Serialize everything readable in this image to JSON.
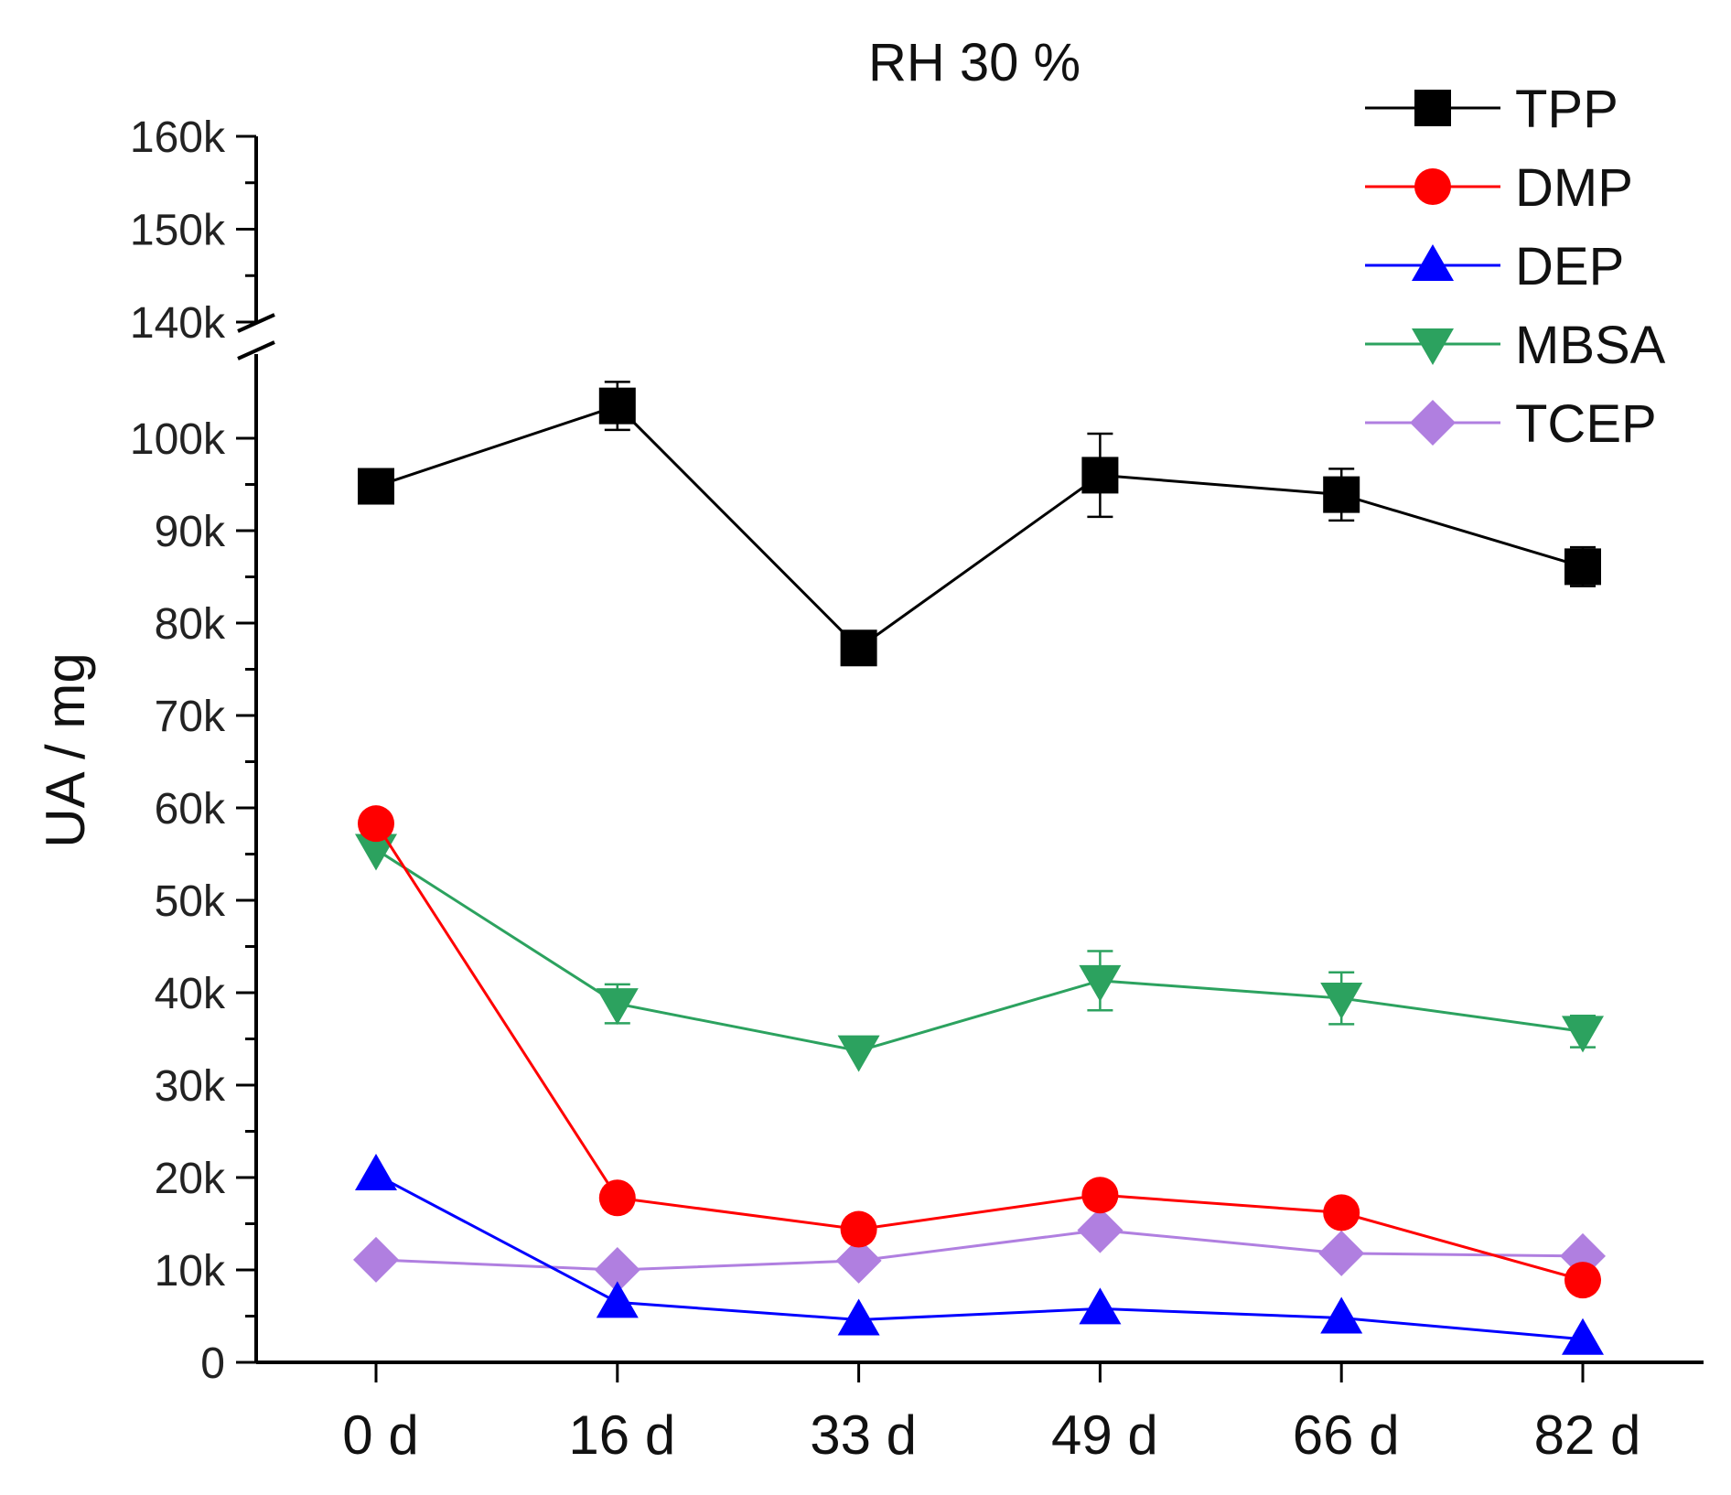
{
  "chart_data": {
    "type": "line",
    "title": "RH 30 %",
    "xlabel": "",
    "ylabel": "UA / mg",
    "categories": [
      "0 d",
      "16 d",
      "33 d",
      "49 d",
      "66 d",
      "82 d"
    ],
    "ylim_lower": [
      0,
      105000
    ],
    "ylim_upper": [
      140000,
      160000
    ],
    "axis_break": true,
    "lower_ticks": [
      {
        "value": 0,
        "label": "0"
      },
      {
        "value": 10000,
        "label": "10k"
      },
      {
        "value": 20000,
        "label": "20k"
      },
      {
        "value": 30000,
        "label": "30k"
      },
      {
        "value": 40000,
        "label": "40k"
      },
      {
        "value": 50000,
        "label": "50k"
      },
      {
        "value": 60000,
        "label": "60k"
      },
      {
        "value": 70000,
        "label": "70k"
      },
      {
        "value": 80000,
        "label": "80k"
      },
      {
        "value": 90000,
        "label": "90k"
      },
      {
        "value": 100000,
        "label": "100k"
      }
    ],
    "upper_ticks": [
      {
        "value": 140000,
        "label": "140k"
      },
      {
        "value": 150000,
        "label": "150k"
      },
      {
        "value": 160000,
        "label": "160k"
      }
    ],
    "legend_position": "top-right",
    "series": [
      {
        "name": "TPP",
        "color": "#000000",
        "marker": "square",
        "values": [
          94800,
          103500,
          77300,
          96000,
          93900,
          86100
        ],
        "errors": [
          1800,
          2600,
          1800,
          4500,
          2800,
          2100
        ]
      },
      {
        "name": "DMP",
        "color": "#ff0000",
        "marker": "circle",
        "values": [
          58300,
          17800,
          14400,
          18100,
          16200,
          8900
        ],
        "errors": [
          0,
          0,
          0,
          0,
          0,
          0
        ]
      },
      {
        "name": "DEP",
        "color": "#0000ff",
        "marker": "triangle-up",
        "values": [
          20300,
          6500,
          4600,
          5800,
          4800,
          2500
        ],
        "errors": [
          0,
          0,
          0,
          0,
          0,
          0
        ]
      },
      {
        "name": "MBSA",
        "color": "#2ca25f",
        "marker": "triangle-down",
        "values": [
          55500,
          38800,
          33700,
          41300,
          39400,
          35800
        ],
        "errors": [
          0,
          2100,
          0,
          3200,
          2800,
          1700
        ]
      },
      {
        "name": "TCEP",
        "color": "#b07fe0",
        "marker": "diamond",
        "values": [
          11100,
          10000,
          11000,
          14300,
          11800,
          11500
        ],
        "errors": [
          0,
          0,
          0,
          0,
          0,
          0
        ]
      }
    ]
  }
}
